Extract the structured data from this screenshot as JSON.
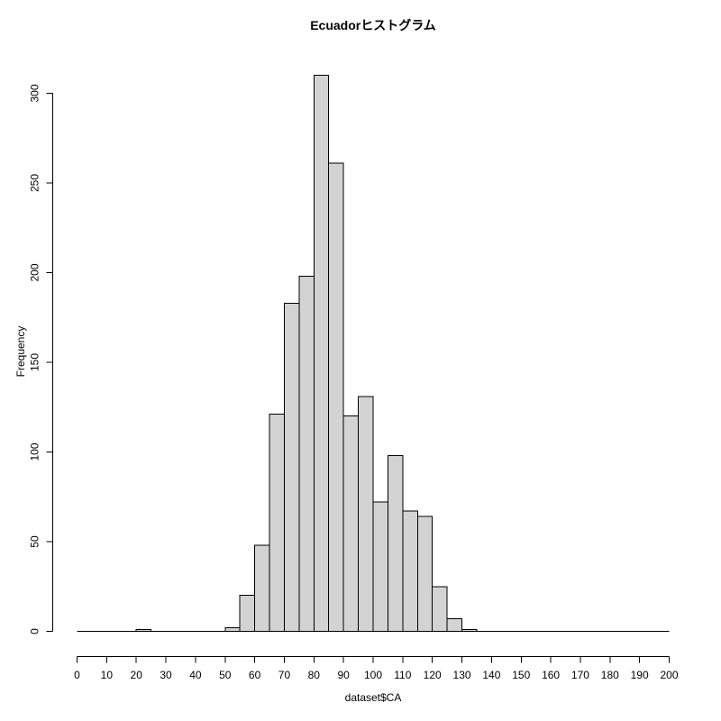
{
  "page": {
    "background_color": "#ffffff"
  },
  "chart_data": {
    "type": "bar",
    "subtype": "histogram",
    "title": "Ecuadorヒストグラム",
    "xlabel": "dataset$CA",
    "ylabel": "Frequency",
    "xlim": [
      0,
      200
    ],
    "ylim": [
      0,
      310
    ],
    "x_ticks": [
      0,
      10,
      20,
      30,
      40,
      50,
      60,
      70,
      80,
      90,
      100,
      110,
      120,
      130,
      140,
      150,
      160,
      170,
      180,
      190,
      200
    ],
    "y_ticks": [
      0,
      50,
      100,
      150,
      200,
      250,
      300
    ],
    "bin_start": 0,
    "bin_width": 5,
    "counts": [
      0,
      0,
      0,
      0,
      1,
      0,
      0,
      0,
      0,
      0,
      2,
      20,
      48,
      121,
      183,
      198,
      310,
      261,
      120,
      131,
      72,
      98,
      67,
      64,
      25,
      7,
      1,
      0,
      0,
      0,
      0,
      0,
      0,
      0,
      0,
      0,
      0,
      0,
      0,
      0
    ],
    "grid": "off",
    "legend": "none",
    "bar_fill": "#d3d3d3",
    "bar_stroke": "#000000",
    "axis_color": "#000000",
    "text_color": "#000000"
  }
}
